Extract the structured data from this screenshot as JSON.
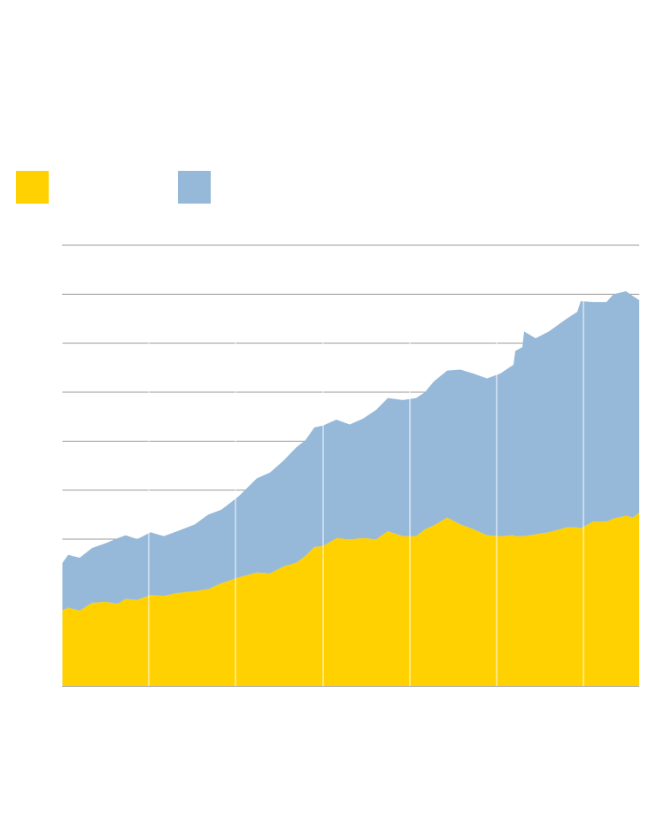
{
  "chart_data": {
    "type": "stacked-area",
    "x": [
      0,
      7,
      20,
      34,
      50,
      63,
      72,
      85,
      100,
      115,
      130,
      150,
      165,
      180,
      200,
      220,
      235,
      250,
      265,
      275,
      285,
      295,
      310,
      325,
      340,
      355,
      368,
      385,
      400,
      410,
      420,
      435,
      450,
      465,
      480,
      495,
      510,
      512,
      520,
      522,
      535,
      550,
      570,
      582,
      586,
      600,
      615,
      623,
      637,
      645,
      652
    ],
    "series": [
      {
        "color": "#ffd100",
        "values": [
          77,
          80,
          77,
          85,
          86,
          84,
          89,
          88,
          93,
          92,
          95,
          97,
          99,
          105,
          111,
          116,
          115,
          122,
          126,
          133,
          142,
          143,
          151,
          150,
          151,
          150,
          158,
          153,
          153,
          160,
          164,
          172,
          165,
          160,
          154,
          153,
          154,
          153,
          153,
          153,
          155,
          157,
          162,
          162,
          161,
          168,
          168,
          171,
          174,
          172,
          177
        ]
      },
      {
        "color": "#96b9d9",
        "values": [
          48,
          54,
          54,
          56,
          60,
          67,
          65,
          62,
          64,
          61,
          63,
          68,
          76,
          75,
          83,
          96,
          103,
          108,
          118,
          118,
          122,
          123,
          121,
          117,
          122,
          132,
          136,
          139,
          141,
          140,
          147,
          150,
          158,
          159,
          160,
          166,
          174,
          189,
          193,
          209,
          200,
          205,
          213,
          220,
          232,
          224,
          224,
          229,
          229,
          226,
          217
        ]
      }
    ],
    "xlim": [
      0,
      652
    ],
    "xticks": [
      0,
      98,
      196,
      295,
      393,
      491,
      589
    ],
    "ylim": [
      0,
      450
    ],
    "yticks": [
      0,
      50,
      100,
      150,
      200,
      250,
      300,
      350,
      400,
      450
    ],
    "grid": true
  }
}
